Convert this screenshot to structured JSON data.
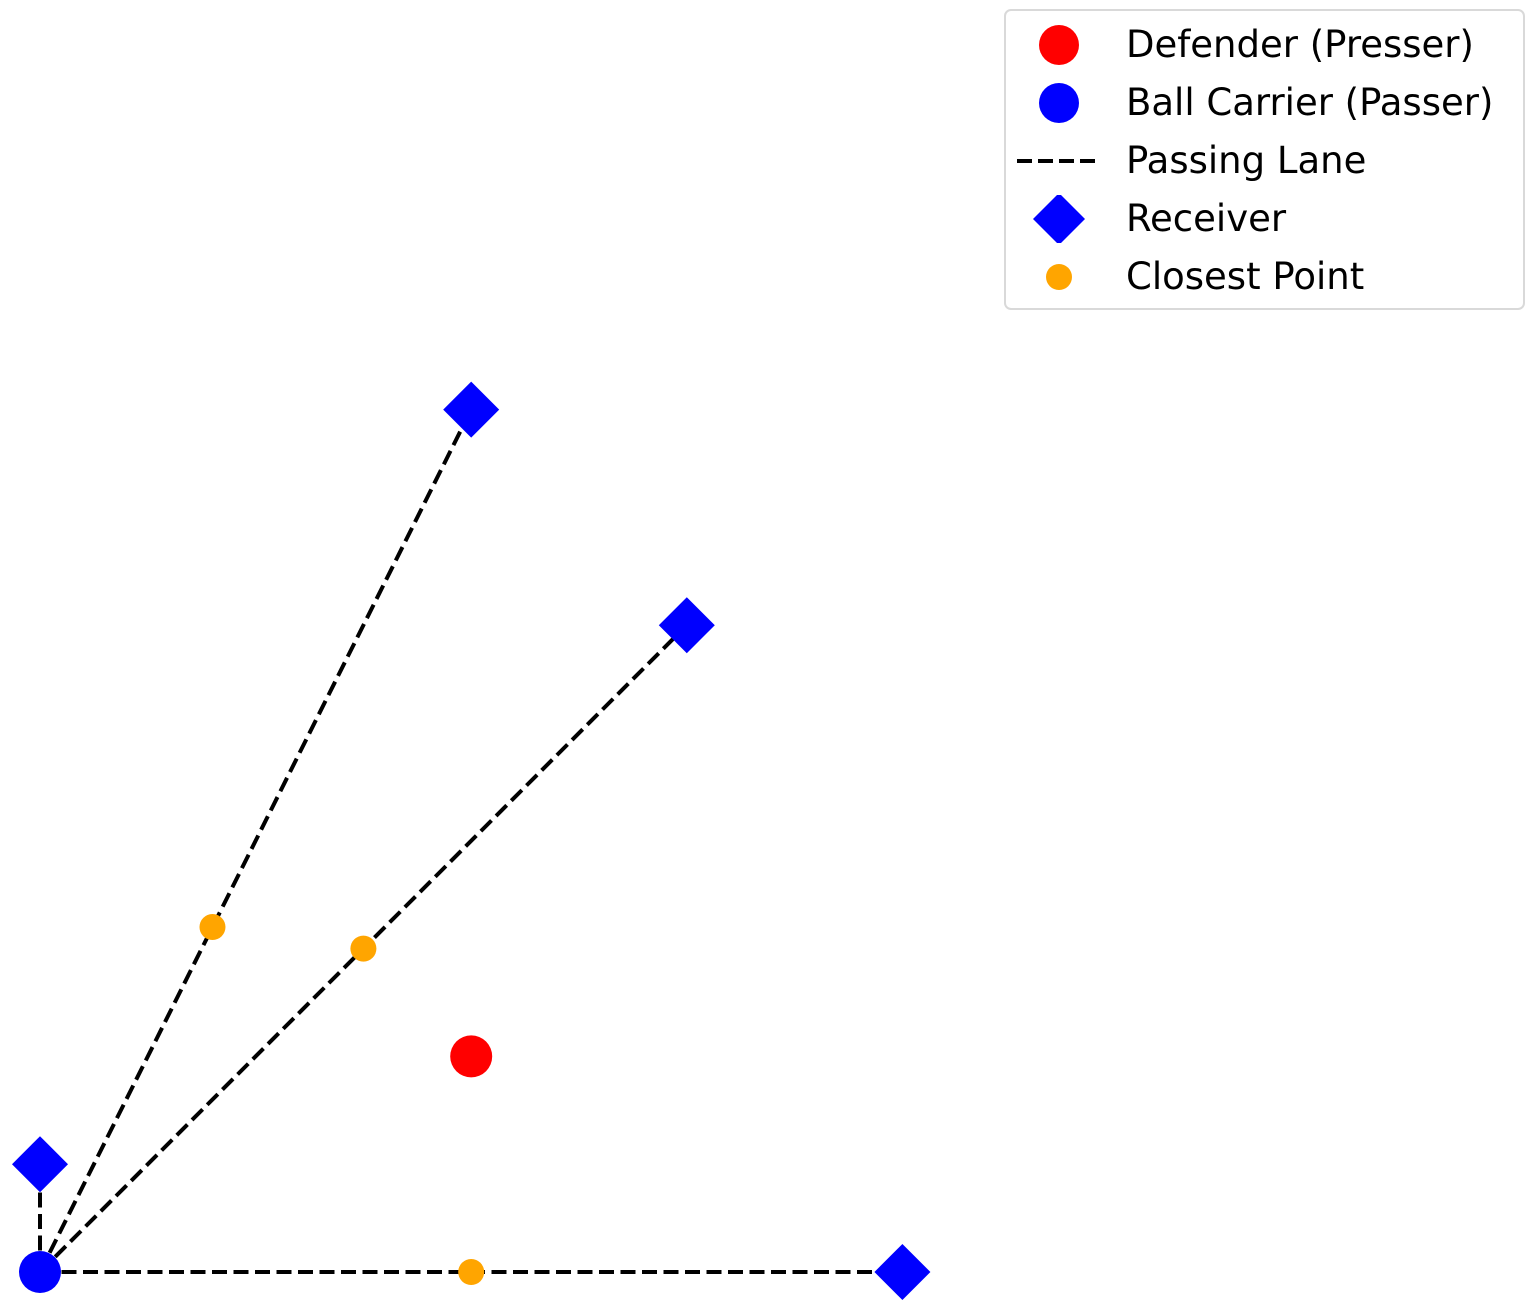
{
  "chart_data": {
    "type": "scatter",
    "title": "",
    "xlabel": "",
    "ylabel": "",
    "axes_visible": false,
    "grid": false,
    "xlim": [
      0,
      10
    ],
    "ylim": [
      0,
      10
    ],
    "legend": {
      "placement": "top-right",
      "entries": [
        {
          "label": "Defender (Presser)",
          "marker": "circle",
          "color": "#ff0000"
        },
        {
          "label": "Ball Carrier (Passer)",
          "marker": "circle",
          "color": "#0000ff"
        },
        {
          "label": "Passing Lane",
          "marker": "dashed-line",
          "color": "#000000"
        },
        {
          "label": "Receiver",
          "marker": "diamond",
          "color": "#0000ff"
        },
        {
          "label": "Closest Point",
          "marker": "small-circle",
          "color": "#ffa500"
        }
      ]
    },
    "ball_carrier": {
      "x": 0,
      "y": 0,
      "color": "#0000ff"
    },
    "defender": {
      "x": 4,
      "y": 2,
      "color": "#ff0000"
    },
    "receivers": [
      {
        "x": 4,
        "y": 8
      },
      {
        "x": 6,
        "y": 6
      },
      {
        "x": 0,
        "y": 1
      },
      {
        "x": 8,
        "y": 0
      }
    ],
    "passing_lanes": [
      {
        "from": [
          0,
          0
        ],
        "to": [
          4,
          8
        ]
      },
      {
        "from": [
          0,
          0
        ],
        "to": [
          6,
          6
        ]
      },
      {
        "from": [
          0,
          0
        ],
        "to": [
          0,
          1
        ]
      },
      {
        "from": [
          0,
          0
        ],
        "to": [
          8,
          0
        ]
      }
    ],
    "closest_points": [
      {
        "x": 1.6,
        "y": 3.2
      },
      {
        "x": 3.0,
        "y": 3.0
      },
      {
        "x": 4.0,
        "y": 0.0
      }
    ],
    "colors": {
      "defender": "#ff0000",
      "ball_carrier": "#0000ff",
      "receiver": "#0000ff",
      "closest_point": "#ffa500",
      "passing_lane": "#000000"
    }
  }
}
